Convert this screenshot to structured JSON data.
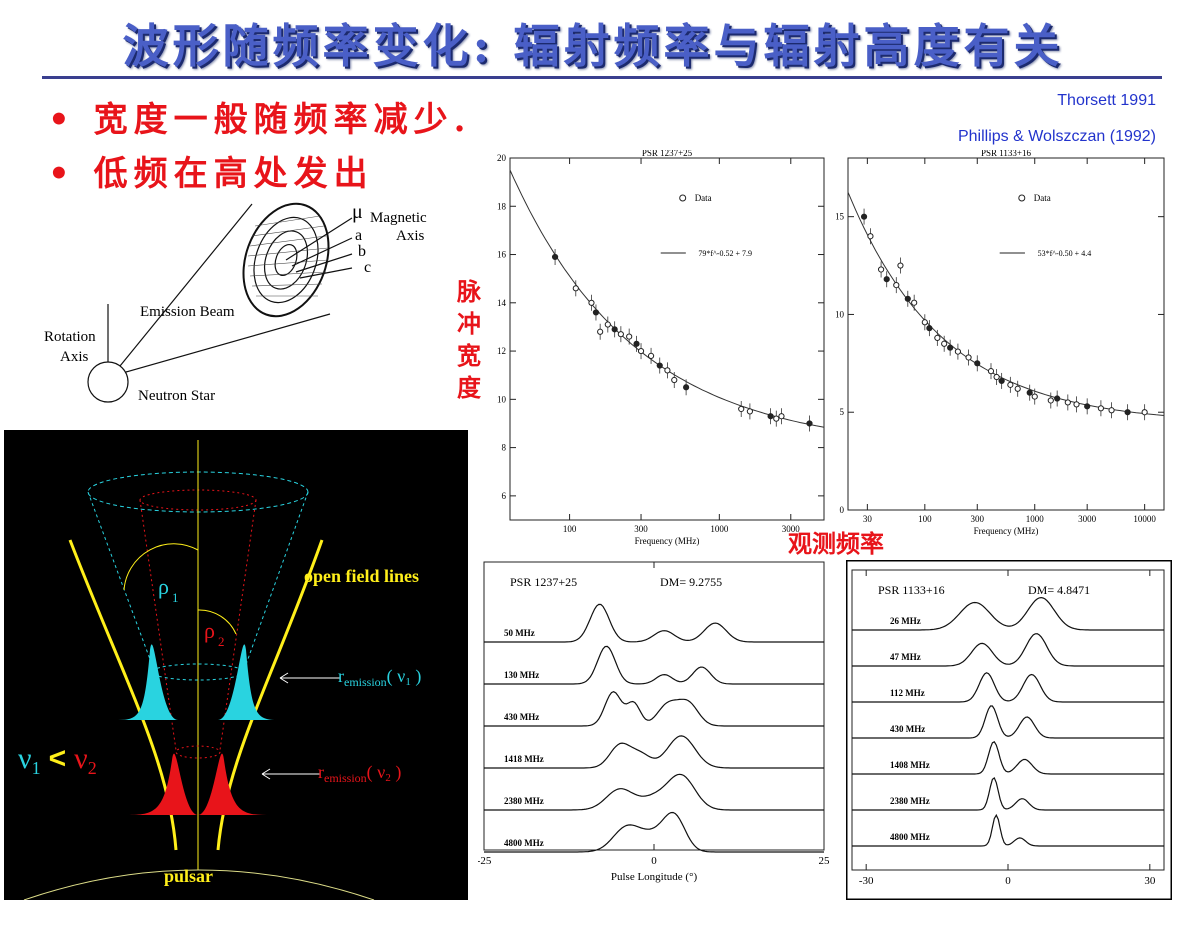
{
  "title": "波形随频率变化: 辐射频率与辐射高度有关",
  "bullets": [
    "宽度一般随频率减少.",
    "低频在高处发出"
  ],
  "refs": [
    "Thorsett 1991",
    "Phillips & Wolszczan (1992)"
  ],
  "labels": {
    "ylabel_vertical": [
      "脉",
      "冲",
      "宽",
      "度"
    ],
    "xlabel_observed": "观测频率"
  },
  "beam_diagram": {
    "mu": "μ",
    "magnetic_axis": "Magnetic",
    "axis": "Axis",
    "a": "a",
    "b": "b",
    "c": "c",
    "emission_beam": "Emission Beam",
    "rotation_axis_1": "Rotation",
    "rotation_axis_2": "Axis",
    "neutron_star": "Neutron Star"
  },
  "cone_diagram": {
    "open_field_lines": "open field lines",
    "rho1": "ρ",
    "rho1_sub": "1",
    "rho2": "ρ",
    "rho2_sub": "2",
    "r1": "r",
    "r1_sub": "emission",
    "r1_paren": "( ν",
    "r1_sub2": "1",
    "r1_close": " )",
    "r2": "r",
    "r2_sub": "emission",
    "r2_paren": "( ν",
    "r2_sub2": "2",
    "r2_close": " )",
    "nu1": "ν",
    "nu1_sub": "1",
    "lt": "<",
    "nu2": "ν",
    "nu2_sub": "2",
    "pulsar": "pulsar",
    "colors": {
      "cyan": "#29d3e0",
      "red": "#e8141a",
      "yellow": "#ffef1a",
      "bg": "#000000"
    }
  },
  "chart_data": [
    {
      "type": "scatter",
      "title": "PSR 1237+25",
      "xlabel": "Frequency (MHz)",
      "x_ticks": [
        "100",
        "300",
        "1000",
        "3000"
      ],
      "y_ticks": [
        "6",
        "8",
        "10",
        "12",
        "14",
        "16",
        "18",
        "20"
      ],
      "ylim": [
        5,
        20
      ],
      "xlim_log": [
        40,
        5000
      ],
      "legend": [
        "Data",
        "79*f^-0.52 + 7.9"
      ],
      "fit": {
        "a": 79,
        "b": -0.52,
        "c": 7.9
      },
      "points": [
        [
          80,
          15.9
        ],
        [
          110,
          14.6
        ],
        [
          140,
          14
        ],
        [
          150,
          13.6
        ],
        [
          160,
          12.8
        ],
        [
          180,
          13.1
        ],
        [
          200,
          12.9
        ],
        [
          220,
          12.7
        ],
        [
          250,
          12.6
        ],
        [
          280,
          12.3
        ],
        [
          300,
          12
        ],
        [
          350,
          11.8
        ],
        [
          400,
          11.4
        ],
        [
          450,
          11.2
        ],
        [
          500,
          10.8
        ],
        [
          600,
          10.5
        ],
        [
          1400,
          9.6
        ],
        [
          1600,
          9.5
        ],
        [
          2200,
          9.3
        ],
        [
          2400,
          9.2
        ],
        [
          2600,
          9.3
        ],
        [
          4000,
          9
        ]
      ]
    },
    {
      "type": "scatter",
      "title": "PSR 1133+16",
      "xlabel": "Frequency (MHz)",
      "x_ticks": [
        "30",
        "100",
        "300",
        "1000",
        "3000",
        "10000"
      ],
      "y_ticks": [
        "0",
        "5",
        "10",
        "15"
      ],
      "ylim": [
        0,
        18
      ],
      "xlim_log": [
        20,
        15000
      ],
      "legend": [
        "Data",
        "53*f^-0.50 + 4.4"
      ],
      "fit": {
        "a": 53,
        "b": -0.5,
        "c": 4.4
      },
      "points": [
        [
          28,
          15
        ],
        [
          32,
          14
        ],
        [
          40,
          12.3
        ],
        [
          45,
          11.8
        ],
        [
          55,
          11.5
        ],
        [
          60,
          12.5
        ],
        [
          70,
          10.8
        ],
        [
          80,
          10.6
        ],
        [
          100,
          9.6
        ],
        [
          110,
          9.3
        ],
        [
          130,
          8.8
        ],
        [
          150,
          8.5
        ],
        [
          170,
          8.3
        ],
        [
          200,
          8.1
        ],
        [
          250,
          7.8
        ],
        [
          300,
          7.5
        ],
        [
          400,
          7.1
        ],
        [
          450,
          6.8
        ],
        [
          500,
          6.6
        ],
        [
          600,
          6.4
        ],
        [
          700,
          6.2
        ],
        [
          900,
          6
        ],
        [
          1000,
          5.8
        ],
        [
          1400,
          5.6
        ],
        [
          1600,
          5.7
        ],
        [
          2000,
          5.5
        ],
        [
          2400,
          5.4
        ],
        [
          3000,
          5.3
        ],
        [
          4000,
          5.2
        ],
        [
          5000,
          5.1
        ],
        [
          7000,
          5
        ],
        [
          10000,
          5
        ]
      ]
    }
  ],
  "profiles_left": {
    "header_psr": "PSR 1237+25",
    "header_dm": "DM= 9.2755",
    "channels": [
      "50 MHz",
      "130 MHz",
      "430 MHz",
      "1418 MHz",
      "2380 MHz",
      "4800 MHz"
    ],
    "x_ticks": [
      "-25",
      "0",
      "25"
    ],
    "xlabel": "Pulse Longitude (°)"
  },
  "profiles_right": {
    "header_psr": "PSR 1133+16",
    "header_dm": "DM= 4.8471",
    "channels": [
      "26 MHz",
      "47 MHz",
      "112 MHz",
      "430 MHz",
      "1408 MHz",
      "2380 MHz",
      "4800 MHz"
    ],
    "x_ticks": [
      "-30",
      "0",
      "30"
    ]
  }
}
